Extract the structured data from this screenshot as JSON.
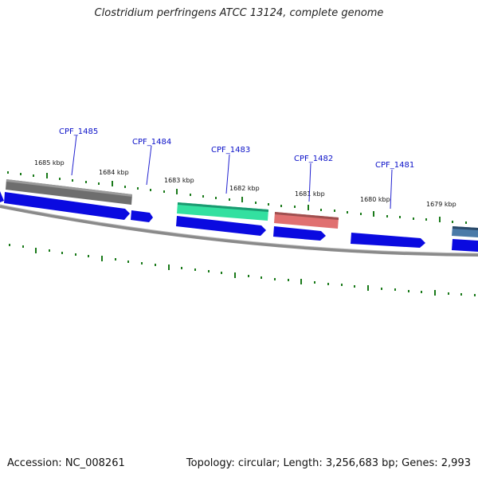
{
  "title": "Clostridium perfringens ATCC 13124, complete genome",
  "footer": {
    "accession": "Accession: NC_008261",
    "summary": "Topology: circular; Length: 3,256,683 bp; Genes: 2,993"
  },
  "colors": {
    "cds": "#0a0ae0",
    "backbone": "#808080",
    "ticks": "#1a7a1a",
    "label": "#0a10c8",
    "feature_gray": "#6e6e6e",
    "feature_green": "#33e0a0",
    "feature_red": "#e07070",
    "feature_steel": "#4a7aa8"
  },
  "kbp_labels": [
    "1685 kbp",
    "1684 kbp",
    "1683 kbp",
    "1682 kbp",
    "1681 kbp",
    "1680 kbp",
    "1679 kbp"
  ],
  "gene_labels": [
    "CPF_1485",
    "CPF_1484",
    "CPF_1483",
    "CPF_1482",
    "CPF_1481"
  ]
}
